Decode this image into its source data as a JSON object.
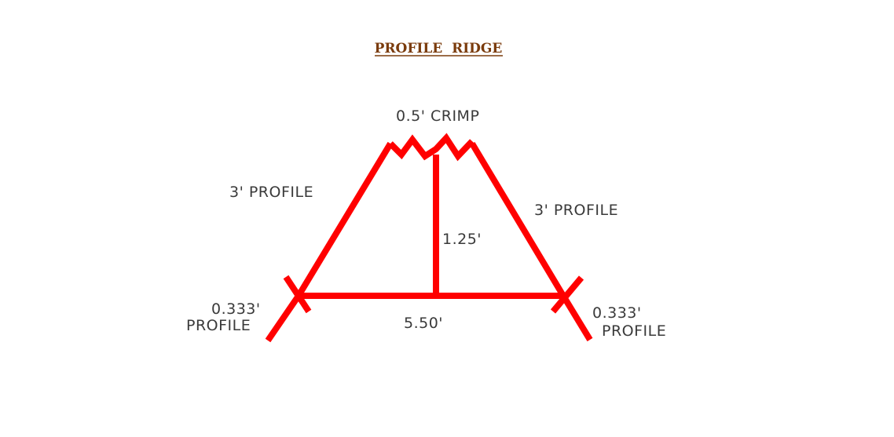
{
  "title": "PROFILE  RIDGE",
  "labels": {
    "crimp": "0.5' CRIMP",
    "left_profile": "3' PROFILE",
    "right_profile": "3' PROFILE",
    "height": "1.25'",
    "base": "5.50'",
    "left_end_dim": "0.333'",
    "left_end_word": "PROFILE",
    "right_end_dim": "0.333'",
    "right_end_word": "PROFILE"
  },
  "colors": {
    "line": "#ff0000",
    "title": "#7a3b0c",
    "text": "#3a3a3a"
  }
}
